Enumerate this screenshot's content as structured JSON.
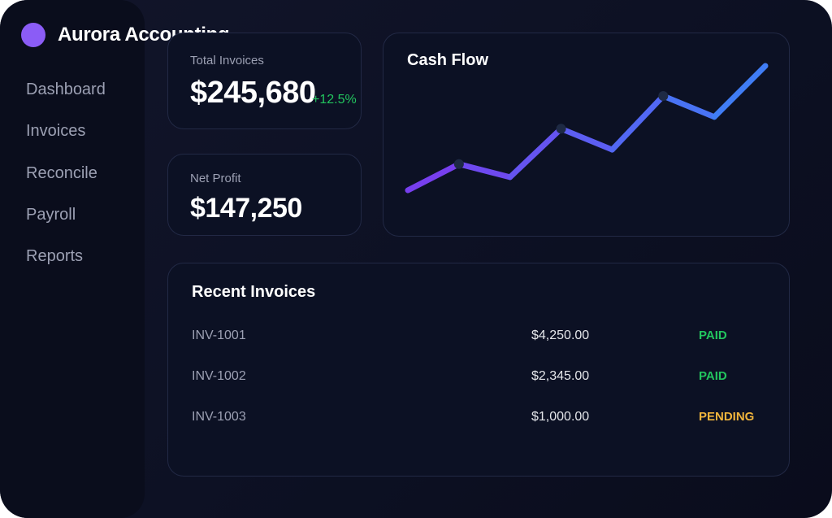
{
  "app": {
    "brand_name": "Aurora Accounting"
  },
  "sidebar": {
    "items": [
      {
        "label": "Dashboard"
      },
      {
        "label": "Invoices"
      },
      {
        "label": "Reconcile"
      },
      {
        "label": "Payroll"
      },
      {
        "label": "Reports"
      }
    ]
  },
  "kpis": {
    "total_invoices": {
      "label": "Total Invoices",
      "value": "$245,680",
      "change": "+12.5%"
    },
    "net_profit": {
      "label": "Net Profit",
      "value": "$147,250"
    }
  },
  "cash_flow": {
    "title": "Cash Flow"
  },
  "chart_data": {
    "type": "line",
    "title": "Cash Flow",
    "xlabel": "",
    "ylabel": "",
    "grid": false,
    "series": [
      {
        "values": [
          0,
          2.0,
          1.0,
          4.7,
          3.1,
          7.2,
          5.6,
          9.5
        ],
        "markers": [
          1,
          3,
          5
        ]
      }
    ],
    "colors": {
      "start": "#7c3aed",
      "end": "#3b82f6"
    }
  },
  "recent_invoices": {
    "title": "Recent Invoices",
    "rows": [
      {
        "id": "INV-1001",
        "amount": "$4,250.00",
        "status": "PAID"
      },
      {
        "id": "INV-1002",
        "amount": "$2,345.00",
        "status": "PAID"
      },
      {
        "id": "INV-1003",
        "amount": "$1,000.00",
        "status": "PENDING"
      }
    ]
  },
  "colors": {
    "accent_purple": "#8b5cf6",
    "paid": "#22c55e",
    "pending": "#f0b43c",
    "background": "#0d1124"
  }
}
